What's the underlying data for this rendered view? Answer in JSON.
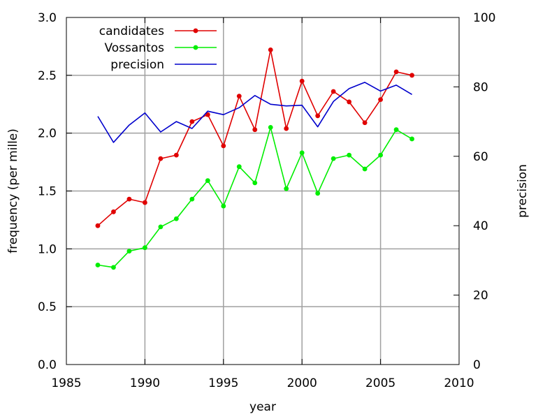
{
  "chart_data": {
    "type": "line",
    "xlabel": "year",
    "ylabel": "frequency (per mille)",
    "y2label": "precision",
    "xlim": [
      1985,
      2010
    ],
    "ylim": [
      0,
      3.0
    ],
    "y2lim": [
      0,
      100
    ],
    "x_ticks": [
      "1985",
      "1990",
      "1995",
      "2000",
      "2005",
      "2010"
    ],
    "y_ticks": [
      "0.0",
      "0.5",
      "1.0",
      "1.5",
      "2.0",
      "2.5",
      "3.0"
    ],
    "y2_ticks": [
      "0",
      "20",
      "40",
      "60",
      "80",
      "100"
    ],
    "grid": true,
    "legend_position": "top-left",
    "x": [
      1987,
      1988,
      1989,
      1990,
      1991,
      1992,
      1993,
      1994,
      1995,
      1996,
      1997,
      1998,
      1999,
      2000,
      2001,
      2002,
      2003,
      2004,
      2005,
      2006,
      2007
    ],
    "series": [
      {
        "name": "candidates",
        "axis": "left",
        "color": "#e00000",
        "markers": true,
        "values": [
          1.2,
          1.32,
          1.43,
          1.4,
          1.78,
          1.81,
          2.1,
          2.16,
          1.89,
          2.32,
          2.03,
          2.72,
          2.04,
          2.45,
          2.15,
          2.36,
          2.27,
          2.09,
          2.29,
          2.53,
          2.5
        ]
      },
      {
        "name": "Vossantos",
        "axis": "left",
        "color": "#00ee00",
        "markers": true,
        "values": [
          0.86,
          0.84,
          0.98,
          1.01,
          1.19,
          1.26,
          1.43,
          1.59,
          1.37,
          1.71,
          1.57,
          2.05,
          1.52,
          1.83,
          1.48,
          1.78,
          1.81,
          1.69,
          1.81,
          2.03,
          1.95
        ]
      },
      {
        "name": "precision",
        "axis": "right",
        "color": "#0000cc",
        "markers": false,
        "values": [
          71.5,
          64.0,
          69.0,
          72.5,
          67.0,
          70.0,
          68.0,
          73.0,
          72.0,
          74.0,
          77.5,
          75.0,
          74.5,
          74.7,
          68.5,
          75.8,
          79.5,
          81.3,
          78.8,
          80.5,
          77.8
        ]
      }
    ]
  }
}
